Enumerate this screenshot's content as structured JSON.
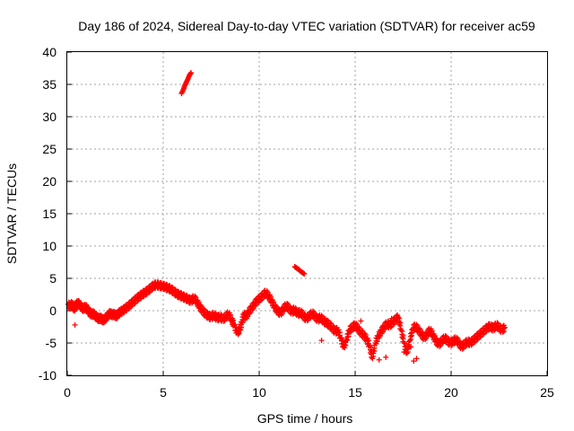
{
  "chart_data": {
    "type": "scatter",
    "title": "Day 186 of 2024, Sidereal Day-to-day VTEC variation (SDTVAR) for receiver ac59",
    "xlabel": "GPS time / hours",
    "ylabel": "SDTVAR / TECUs",
    "xlim": [
      0,
      25
    ],
    "ylim": [
      -10,
      40
    ],
    "xticks": [
      "0",
      "5",
      "10",
      "15",
      "20",
      "25"
    ],
    "yticks": [
      "-10",
      "-5",
      "0",
      "5",
      "10",
      "15",
      "20",
      "25",
      "30",
      "35",
      "40"
    ],
    "grid": true,
    "marker": "+",
    "color": "#ff0000",
    "series": [
      {
        "name": "main",
        "points": [
          [
            0.05,
            1.0
          ],
          [
            0.15,
            0.6
          ],
          [
            0.25,
            1.1
          ],
          [
            0.35,
            0.2
          ],
          [
            0.45,
            0.8
          ],
          [
            0.55,
            1.2
          ],
          [
            0.65,
            0.9
          ],
          [
            0.75,
            0.5
          ],
          [
            0.85,
            0.3
          ],
          [
            0.95,
            0.6
          ],
          [
            1.05,
            0.2
          ],
          [
            1.15,
            -0.2
          ],
          [
            1.25,
            -0.6
          ],
          [
            1.35,
            -0.4
          ],
          [
            1.45,
            -0.8
          ],
          [
            1.55,
            -1.0
          ],
          [
            1.65,
            -1.3
          ],
          [
            1.75,
            -1.1
          ],
          [
            1.85,
            -1.5
          ],
          [
            1.95,
            -1.3
          ],
          [
            2.05,
            -1.0
          ],
          [
            2.15,
            -0.6
          ],
          [
            2.25,
            -0.4
          ],
          [
            2.35,
            -0.7
          ],
          [
            2.45,
            -0.5
          ],
          [
            2.55,
            -0.9
          ],
          [
            2.65,
            -0.5
          ],
          [
            2.75,
            -0.2
          ],
          [
            2.9,
            0.0
          ],
          [
            3.0,
            0.3
          ],
          [
            3.15,
            0.6
          ],
          [
            3.3,
            1.0
          ],
          [
            3.45,
            1.4
          ],
          [
            3.6,
            1.8
          ],
          [
            3.75,
            2.2
          ],
          [
            3.9,
            2.5
          ],
          [
            4.05,
            2.8
          ],
          [
            4.2,
            3.1
          ],
          [
            4.35,
            3.5
          ],
          [
            4.5,
            3.9
          ],
          [
            4.65,
            4.0
          ],
          [
            4.8,
            3.9
          ],
          [
            4.95,
            3.8
          ],
          [
            5.1,
            3.7
          ],
          [
            5.25,
            3.5
          ],
          [
            5.4,
            3.3
          ],
          [
            5.55,
            3.0
          ],
          [
            5.7,
            2.6
          ],
          [
            5.85,
            2.4
          ],
          [
            6.0,
            2.2
          ],
          [
            6.15,
            2.0
          ],
          [
            6.3,
            1.8
          ],
          [
            6.45,
            1.5
          ],
          [
            6.6,
            2.0
          ],
          [
            6.75,
            1.4
          ],
          [
            6.9,
            0.6
          ],
          [
            7.05,
            0.0
          ],
          [
            7.2,
            -0.5
          ],
          [
            7.35,
            -0.8
          ],
          [
            7.5,
            -1.0
          ],
          [
            7.65,
            -0.6
          ],
          [
            7.8,
            -1.2
          ],
          [
            7.95,
            -0.9
          ],
          [
            8.1,
            -1.3
          ],
          [
            8.25,
            -1.0
          ],
          [
            8.4,
            -0.5
          ],
          [
            8.55,
            -1.4
          ],
          [
            8.7,
            -2.2
          ],
          [
            8.85,
            -3.4
          ],
          [
            9.0,
            -2.9
          ],
          [
            9.1,
            -1.8
          ],
          [
            9.2,
            -0.6
          ],
          [
            9.3,
            -1.0
          ],
          [
            9.45,
            -0.2
          ],
          [
            9.6,
            0.4
          ],
          [
            9.75,
            1.0
          ],
          [
            9.9,
            1.6
          ],
          [
            10.05,
            1.9
          ],
          [
            10.2,
            2.4
          ],
          [
            10.35,
            2.8
          ],
          [
            10.5,
            2.2
          ],
          [
            10.65,
            1.5
          ],
          [
            10.8,
            0.6
          ],
          [
            10.95,
            0.0
          ],
          [
            11.1,
            -0.4
          ],
          [
            11.25,
            0.2
          ],
          [
            11.4,
            0.8
          ],
          [
            11.55,
            0.4
          ],
          [
            11.7,
            -0.2
          ],
          [
            11.85,
            0.2
          ],
          [
            12.0,
            -0.5
          ],
          [
            12.15,
            -0.2
          ],
          [
            12.3,
            -0.8
          ],
          [
            12.45,
            -1.2
          ],
          [
            12.6,
            -0.9
          ],
          [
            12.75,
            -0.4
          ],
          [
            12.9,
            -0.8
          ],
          [
            13.05,
            -1.4
          ],
          [
            13.2,
            -1.0
          ],
          [
            13.35,
            -1.6
          ],
          [
            13.5,
            -1.8
          ],
          [
            13.65,
            -2.2
          ],
          [
            13.8,
            -2.6
          ],
          [
            13.95,
            -3.2
          ],
          [
            14.1,
            -3.0
          ],
          [
            14.25,
            -4.2
          ],
          [
            14.4,
            -5.6
          ],
          [
            14.55,
            -4.6
          ],
          [
            14.7,
            -3.0
          ],
          [
            14.85,
            -2.6
          ],
          [
            15.0,
            -2.2
          ],
          [
            15.15,
            -2.8
          ],
          [
            15.3,
            -3.4
          ],
          [
            15.45,
            -3.8
          ],
          [
            15.6,
            -4.4
          ],
          [
            15.75,
            -5.4
          ],
          [
            15.9,
            -7.4
          ],
          [
            16.05,
            -5.0
          ],
          [
            16.2,
            -4.0
          ],
          [
            16.35,
            -3.2
          ],
          [
            16.5,
            -2.6
          ],
          [
            16.65,
            -2.0
          ],
          [
            16.8,
            -2.3
          ],
          [
            16.95,
            -1.8
          ],
          [
            17.1,
            -1.4
          ],
          [
            17.25,
            -1.0
          ],
          [
            17.4,
            -3.0
          ],
          [
            17.55,
            -5.0
          ],
          [
            17.7,
            -6.6
          ],
          [
            17.85,
            -4.6
          ],
          [
            18.0,
            -2.8
          ],
          [
            18.15,
            -2.4
          ],
          [
            18.3,
            -3.0
          ],
          [
            18.45,
            -3.6
          ],
          [
            18.6,
            -4.2
          ],
          [
            18.75,
            -3.6
          ],
          [
            18.9,
            -3.0
          ],
          [
            19.05,
            -3.8
          ],
          [
            19.2,
            -4.6
          ],
          [
            19.35,
            -5.2
          ],
          [
            19.5,
            -4.8
          ],
          [
            19.65,
            -4.2
          ],
          [
            19.8,
            -4.6
          ],
          [
            19.95,
            -5.0
          ],
          [
            20.1,
            -4.8
          ],
          [
            20.25,
            -4.4
          ],
          [
            20.4,
            -5.0
          ],
          [
            20.55,
            -5.6
          ],
          [
            20.7,
            -5.2
          ],
          [
            20.85,
            -4.8
          ],
          [
            21.0,
            -5.0
          ],
          [
            21.15,
            -4.6
          ],
          [
            21.3,
            -4.2
          ],
          [
            21.45,
            -3.8
          ],
          [
            21.6,
            -3.4
          ],
          [
            21.75,
            -3.0
          ],
          [
            21.9,
            -2.6
          ],
          [
            22.05,
            -2.4
          ],
          [
            22.2,
            -2.8
          ],
          [
            22.35,
            -2.2
          ],
          [
            22.5,
            -2.6
          ],
          [
            22.65,
            -3.0
          ],
          [
            22.8,
            -2.6
          ]
        ]
      },
      {
        "name": "outlier-high",
        "points": [
          [
            5.95,
            33.6
          ],
          [
            6.05,
            34.2
          ],
          [
            6.12,
            34.8
          ],
          [
            6.2,
            35.3
          ],
          [
            6.28,
            35.8
          ],
          [
            6.36,
            36.4
          ],
          [
            6.45,
            36.8
          ]
        ]
      },
      {
        "name": "outlier-mid",
        "points": [
          [
            11.85,
            6.8
          ],
          [
            11.95,
            6.6
          ],
          [
            12.05,
            6.4
          ],
          [
            12.15,
            6.1
          ],
          [
            12.25,
            5.9
          ],
          [
            12.35,
            5.7
          ]
        ]
      },
      {
        "name": "scattered",
        "points": [
          [
            0.4,
            -2.2
          ],
          [
            13.25,
            -4.6
          ],
          [
            16.25,
            -7.6
          ],
          [
            16.6,
            -7.2
          ],
          [
            17.55,
            -6.4
          ],
          [
            17.9,
            -5.6
          ],
          [
            18.05,
            -7.8
          ],
          [
            18.2,
            -7.4
          ],
          [
            16.9,
            -1.2
          ],
          [
            15.3,
            -1.6
          ]
        ]
      }
    ]
  }
}
